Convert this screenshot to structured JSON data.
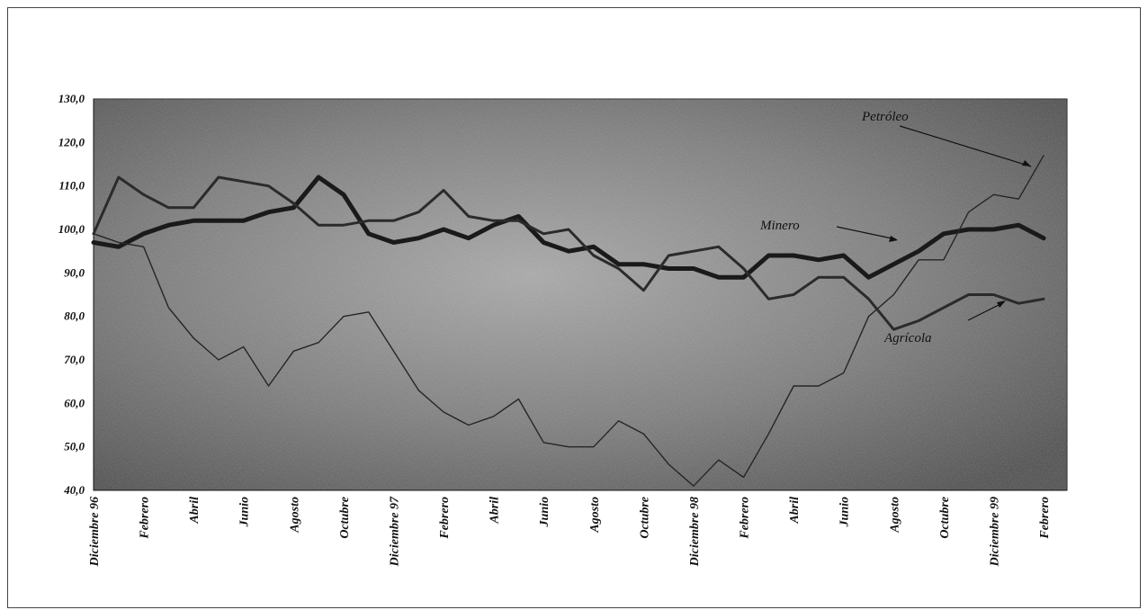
{
  "chart_data": {
    "type": "line",
    "ylim": [
      40,
      130
    ],
    "yticks": [
      "40,0",
      "50,0",
      "60,0",
      "70,0",
      "80,0",
      "90,0",
      "100,0",
      "110,0",
      "120,0",
      "130,0"
    ],
    "ytick_values": [
      40,
      50,
      60,
      70,
      80,
      90,
      100,
      110,
      120,
      130
    ],
    "x_labels": [
      "Diciembre 96",
      "Febrero",
      "Abril",
      "Junio",
      "Agosto",
      "Octubre",
      "Diciembre 97",
      "Febrero",
      "Abril",
      "Junio",
      "Agosto",
      "Octubre",
      "Diciembre 98",
      "Febrero",
      "Abril",
      "Junio",
      "Agosto",
      "Octubre",
      "Diciembre 99",
      "Febrero"
    ],
    "n_points": 39,
    "grid": false,
    "background": "#6b6b6b",
    "series": [
      {
        "name": "Minero",
        "values": [
          97,
          96,
          99,
          101,
          102,
          102,
          102,
          104,
          105,
          112,
          108,
          99,
          97,
          98,
          100,
          98,
          101,
          103,
          97,
          95,
          96,
          92,
          92,
          91,
          91,
          89,
          89,
          94,
          94,
          93,
          94,
          89,
          92,
          95,
          99,
          100,
          100,
          101,
          98
        ]
      },
      {
        "name": "Petróleo",
        "values": [
          99,
          97,
          96,
          82,
          75,
          70,
          73,
          64,
          72,
          74,
          80,
          81,
          72,
          63,
          58,
          55,
          57,
          61,
          51,
          50,
          50,
          56,
          53,
          46,
          41,
          47,
          43,
          53,
          64,
          64,
          67,
          80,
          85,
          93,
          93,
          104,
          108,
          107,
          117
        ]
      },
      {
        "name": "Agrícola",
        "values": [
          99,
          112,
          108,
          105,
          105,
          112,
          111,
          110,
          106,
          101,
          101,
          102,
          102,
          104,
          109,
          103,
          102,
          102,
          99,
          100,
          94,
          91,
          86,
          94,
          95,
          96,
          91,
          84,
          85,
          89,
          89,
          84,
          77,
          79,
          82,
          85,
          85,
          83,
          84
        ]
      }
    ],
    "annotations": [
      {
        "text": "Petróleo",
        "color": "#111111"
      },
      {
        "text": "Minero",
        "color": "#111111"
      },
      {
        "text": "Agrícola",
        "color": "#111111"
      }
    ],
    "colors": {
      "Minero": "#1a1a1a",
      "Petróleo": "#262626",
      "Agrícola": "#2b2b2b"
    }
  }
}
